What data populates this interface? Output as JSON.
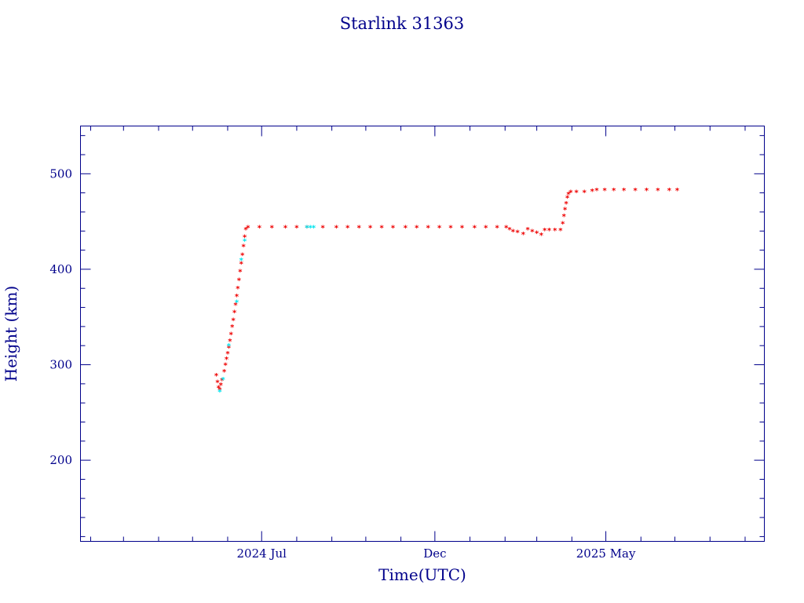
{
  "chart_data": {
    "type": "scatter",
    "title": "Starlink 31363",
    "xlabel": "Time(UTC)",
    "ylabel": "Height (km)",
    "x_type": "date",
    "xlim": [
      "2024-01-23",
      "2025-09-18"
    ],
    "ylim": [
      115,
      550
    ],
    "x_ticks": [
      {
        "date": "2024-07-01",
        "label": "2024 Jul"
      },
      {
        "date": "2024-12-01",
        "label": "Dec"
      },
      {
        "date": "2025-05-01",
        "label": "2025 May"
      }
    ],
    "x_minor_ticks": [
      "2024-02-01",
      "2024-03-01",
      "2024-04-01",
      "2024-05-01",
      "2024-06-01",
      "2024-08-01",
      "2024-09-01",
      "2024-10-01",
      "2024-11-01",
      "2025-01-01",
      "2025-02-01",
      "2025-03-01",
      "2025-04-01",
      "2025-06-01",
      "2025-07-01",
      "2025-08-01",
      "2025-09-01"
    ],
    "y_ticks": [
      200,
      300,
      400,
      500
    ],
    "y_minor_step": 20,
    "marker": "*",
    "colors": {
      "primary": "#ee0000",
      "secondary": "#00e5ee",
      "axes": "#00008b"
    },
    "series": [
      {
        "color": "#ee0000",
        "points": [
          [
            "2024-05-22",
            289
          ],
          [
            "2024-05-23",
            282
          ],
          [
            "2024-05-24",
            276
          ],
          [
            "2024-05-25",
            274
          ],
          [
            "2024-05-26",
            279
          ],
          [
            "2024-05-27",
            284
          ],
          [
            "2024-05-29",
            293
          ],
          [
            "2024-05-30",
            300
          ],
          [
            "2024-05-31",
            306
          ],
          [
            "2024-06-01",
            312
          ],
          [
            "2024-06-02",
            318
          ],
          [
            "2024-06-03",
            325
          ],
          [
            "2024-06-04",
            332
          ],
          [
            "2024-06-05",
            340
          ],
          [
            "2024-06-06",
            347
          ],
          [
            "2024-06-07",
            355
          ],
          [
            "2024-06-08",
            363
          ],
          [
            "2024-06-09",
            372
          ],
          [
            "2024-06-10",
            380
          ],
          [
            "2024-06-11",
            389
          ],
          [
            "2024-06-12",
            398
          ],
          [
            "2024-06-13",
            406
          ],
          [
            "2024-06-14",
            415
          ],
          [
            "2024-06-15",
            424
          ],
          [
            "2024-06-16",
            434
          ],
          [
            "2024-06-17",
            442
          ],
          [
            "2024-06-19",
            444
          ],
          [
            "2024-06-29",
            444
          ],
          [
            "2024-07-10",
            444
          ],
          [
            "2024-07-22",
            444
          ],
          [
            "2024-08-01",
            444
          ],
          [
            "2024-08-10",
            444
          ],
          [
            "2024-08-24",
            444
          ],
          [
            "2024-09-05",
            444
          ],
          [
            "2024-09-15",
            444
          ],
          [
            "2024-09-25",
            444
          ],
          [
            "2024-10-05",
            444
          ],
          [
            "2024-10-15",
            444
          ],
          [
            "2024-10-25",
            444
          ],
          [
            "2024-11-05",
            444
          ],
          [
            "2024-11-15",
            444
          ],
          [
            "2024-11-25",
            444
          ],
          [
            "2024-12-05",
            444
          ],
          [
            "2024-12-15",
            444
          ],
          [
            "2024-12-25",
            444
          ],
          [
            "2025-01-05",
            444
          ],
          [
            "2025-01-15",
            444
          ],
          [
            "2025-01-25",
            444
          ],
          [
            "2025-02-02",
            444
          ],
          [
            "2025-02-05",
            442
          ],
          [
            "2025-02-08",
            440
          ],
          [
            "2025-02-12",
            439
          ],
          [
            "2025-02-17",
            437
          ],
          [
            "2025-02-21",
            442
          ],
          [
            "2025-02-25",
            440
          ],
          [
            "2025-03-01",
            438
          ],
          [
            "2025-03-05",
            436
          ],
          [
            "2025-03-08",
            441
          ],
          [
            "2025-03-12",
            441
          ],
          [
            "2025-03-17",
            441
          ],
          [
            "2025-03-22",
            441
          ],
          [
            "2025-03-24",
            448
          ],
          [
            "2025-03-25",
            456
          ],
          [
            "2025-03-26",
            463
          ],
          [
            "2025-03-27",
            469
          ],
          [
            "2025-03-28",
            475
          ],
          [
            "2025-03-29",
            479
          ],
          [
            "2025-03-31",
            481
          ],
          [
            "2025-04-05",
            481
          ],
          [
            "2025-04-12",
            481
          ],
          [
            "2025-04-19",
            482
          ],
          [
            "2025-04-23",
            483
          ],
          [
            "2025-04-30",
            483
          ],
          [
            "2025-05-08",
            483
          ],
          [
            "2025-05-17",
            483
          ],
          [
            "2025-05-27",
            483
          ],
          [
            "2025-06-06",
            483
          ],
          [
            "2025-06-16",
            483
          ],
          [
            "2025-06-26",
            483
          ],
          [
            "2025-07-03",
            483
          ]
        ]
      },
      {
        "color": "#00e5ee",
        "points": [
          [
            "2024-05-25",
            272
          ],
          [
            "2024-05-28",
            285
          ],
          [
            "2024-06-02",
            320
          ],
          [
            "2024-06-09",
            366
          ],
          [
            "2024-06-13",
            410
          ],
          [
            "2024-06-16",
            430
          ],
          [
            "2024-08-10",
            444
          ],
          [
            "2024-08-13",
            444
          ],
          [
            "2024-08-16",
            444
          ]
        ]
      }
    ]
  }
}
